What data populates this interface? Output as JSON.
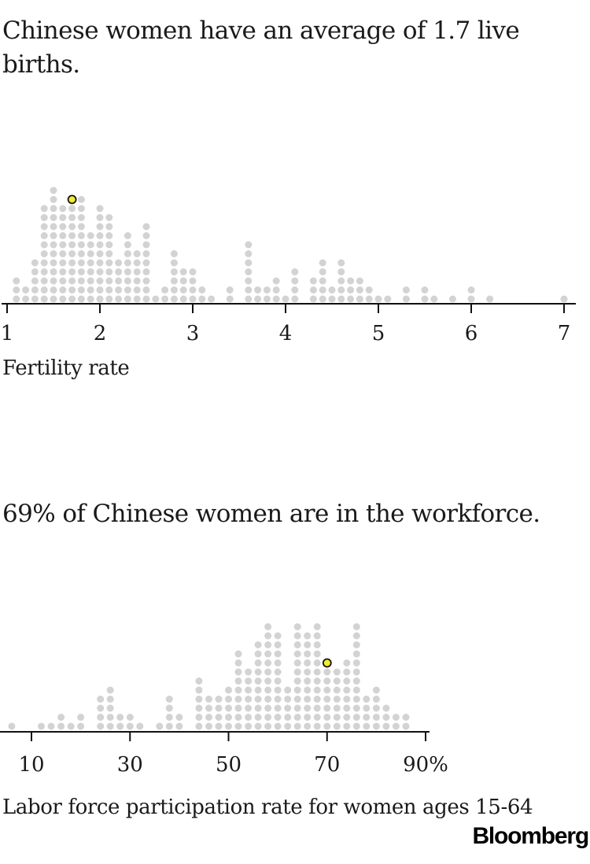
{
  "chart_data": [
    {
      "type": "scatter",
      "subtype": "dot-histogram",
      "title": "Chinese women have an average of 1.7 live births.",
      "xlabel": "Fertility rate",
      "xlim": [
        1,
        7
      ],
      "x_ticks": [
        "1",
        "2",
        "3",
        "4",
        "5",
        "6",
        "7"
      ],
      "bin_width": 0.1,
      "colors": {
        "dot": "#d3d3d3",
        "highlight": "#f5ec2a",
        "highlight_stroke": "#111111"
      },
      "highlight": {
        "label": "China",
        "x": 1.7
      },
      "bins": [
        {
          "x": 1.1,
          "count": 3
        },
        {
          "x": 1.2,
          "count": 2
        },
        {
          "x": 1.3,
          "count": 5
        },
        {
          "x": 1.4,
          "count": 11
        },
        {
          "x": 1.5,
          "count": 13
        },
        {
          "x": 1.6,
          "count": 11
        },
        {
          "x": 1.7,
          "count": 12
        },
        {
          "x": 1.8,
          "count": 12
        },
        {
          "x": 1.9,
          "count": 8
        },
        {
          "x": 2.0,
          "count": 11
        },
        {
          "x": 2.1,
          "count": 10
        },
        {
          "x": 2.2,
          "count": 5
        },
        {
          "x": 2.3,
          "count": 8
        },
        {
          "x": 2.4,
          "count": 6
        },
        {
          "x": 2.5,
          "count": 9
        },
        {
          "x": 2.6,
          "count": 1
        },
        {
          "x": 2.7,
          "count": 2
        },
        {
          "x": 2.8,
          "count": 6
        },
        {
          "x": 2.9,
          "count": 4
        },
        {
          "x": 3.0,
          "count": 4
        },
        {
          "x": 3.1,
          "count": 2
        },
        {
          "x": 3.2,
          "count": 1
        },
        {
          "x": 3.4,
          "count": 2
        },
        {
          "x": 3.6,
          "count": 7
        },
        {
          "x": 3.7,
          "count": 2
        },
        {
          "x": 3.8,
          "count": 2
        },
        {
          "x": 3.9,
          "count": 3
        },
        {
          "x": 4.0,
          "count": 1
        },
        {
          "x": 4.1,
          "count": 4
        },
        {
          "x": 4.3,
          "count": 3
        },
        {
          "x": 4.4,
          "count": 5
        },
        {
          "x": 4.5,
          "count": 2
        },
        {
          "x": 4.6,
          "count": 5
        },
        {
          "x": 4.7,
          "count": 3
        },
        {
          "x": 4.8,
          "count": 3
        },
        {
          "x": 4.9,
          "count": 2
        },
        {
          "x": 5.0,
          "count": 1
        },
        {
          "x": 5.1,
          "count": 1
        },
        {
          "x": 5.3,
          "count": 2
        },
        {
          "x": 5.5,
          "count": 2
        },
        {
          "x": 5.6,
          "count": 1
        },
        {
          "x": 5.8,
          "count": 1
        },
        {
          "x": 6.0,
          "count": 2
        },
        {
          "x": 6.2,
          "count": 1
        },
        {
          "x": 7.0,
          "count": 1
        }
      ]
    },
    {
      "type": "scatter",
      "subtype": "dot-histogram",
      "title": "69% of Chinese women are in the workforce.",
      "xlabel": "Labor force participation rate for women ages 15-64",
      "xlim": [
        6,
        90
      ],
      "x_ticks": [
        "10",
        "30",
        "50",
        "70",
        "90%"
      ],
      "x_tick_values": [
        10,
        30,
        50,
        70,
        90
      ],
      "bin_width": 2,
      "colors": {
        "dot": "#d3d3d3",
        "highlight": "#f5ec2a",
        "highlight_stroke": "#111111"
      },
      "highlight": {
        "label": "China",
        "x": 70
      },
      "bins": [
        {
          "x": 6,
          "count": 1
        },
        {
          "x": 12,
          "count": 1
        },
        {
          "x": 14,
          "count": 1
        },
        {
          "x": 16,
          "count": 2
        },
        {
          "x": 18,
          "count": 1
        },
        {
          "x": 20,
          "count": 2
        },
        {
          "x": 24,
          "count": 4
        },
        {
          "x": 26,
          "count": 5
        },
        {
          "x": 28,
          "count": 2
        },
        {
          "x": 30,
          "count": 2
        },
        {
          "x": 32,
          "count": 1
        },
        {
          "x": 36,
          "count": 1
        },
        {
          "x": 38,
          "count": 4
        },
        {
          "x": 40,
          "count": 2
        },
        {
          "x": 44,
          "count": 6
        },
        {
          "x": 46,
          "count": 4
        },
        {
          "x": 48,
          "count": 4
        },
        {
          "x": 50,
          "count": 5
        },
        {
          "x": 52,
          "count": 9
        },
        {
          "x": 54,
          "count": 7
        },
        {
          "x": 56,
          "count": 10
        },
        {
          "x": 58,
          "count": 12
        },
        {
          "x": 60,
          "count": 11
        },
        {
          "x": 62,
          "count": 5
        },
        {
          "x": 64,
          "count": 12
        },
        {
          "x": 66,
          "count": 11
        },
        {
          "x": 68,
          "count": 12
        },
        {
          "x": 70,
          "count": 8
        },
        {
          "x": 72,
          "count": 7
        },
        {
          "x": 74,
          "count": 8
        },
        {
          "x": 76,
          "count": 12
        },
        {
          "x": 78,
          "count": 4
        },
        {
          "x": 80,
          "count": 5
        },
        {
          "x": 82,
          "count": 3
        },
        {
          "x": 84,
          "count": 2
        },
        {
          "x": 86,
          "count": 2
        }
      ]
    }
  ],
  "source": "Bloomberg"
}
